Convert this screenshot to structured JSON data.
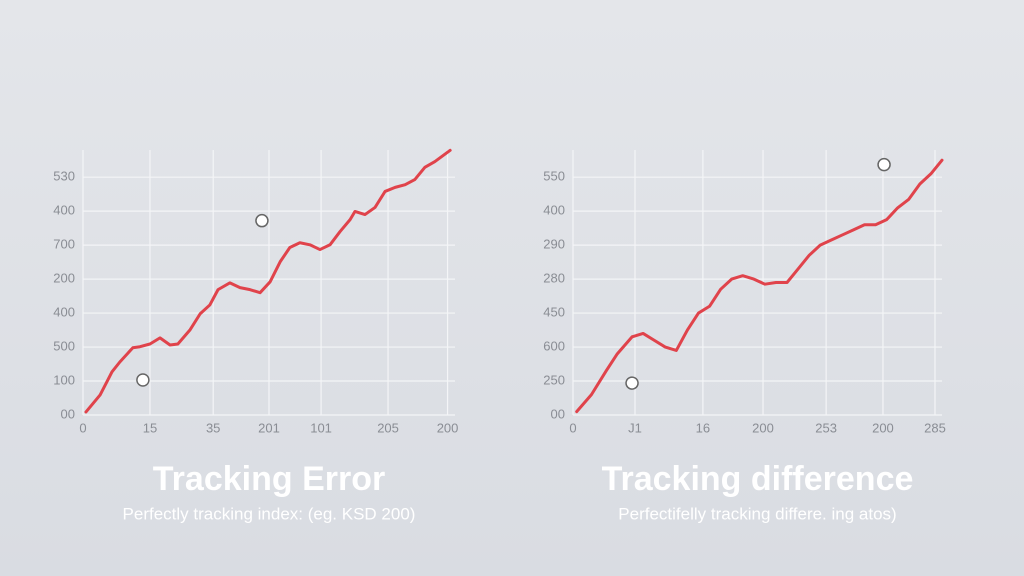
{
  "chart_data": [
    {
      "type": "line",
      "title": "Tracking Error",
      "subtitle": "Perfectly tracking index: (eg. KSD 200)",
      "xlim": [
        0,
        100
      ],
      "ylim": [
        0,
        7.8
      ],
      "grid": true,
      "xticks": [
        {
          "value": 0,
          "label": "0"
        },
        {
          "value": 18,
          "label": "15"
        },
        {
          "value": 35,
          "label": "35"
        },
        {
          "value": 50,
          "label": "201"
        },
        {
          "value": 64,
          "label": "101"
        },
        {
          "value": 82,
          "label": "205"
        },
        {
          "value": 98,
          "label": "200"
        }
      ],
      "yticks": [
        {
          "value": 0,
          "label": "00"
        },
        {
          "value": 1,
          "label": "100"
        },
        {
          "value": 2,
          "label": "500"
        },
        {
          "value": 3,
          "label": "400"
        },
        {
          "value": 4,
          "label": "200"
        },
        {
          "value": 5,
          "label": "700"
        },
        {
          "value": 6,
          "label": "400"
        },
        {
          "value": 7,
          "label": "530"
        }
      ],
      "series": [
        {
          "color": "#e0434b",
          "x": [
            0.8,
            4.6,
            7.8,
            9.9,
            13.4,
            15.3,
            18,
            20.7,
            23.4,
            25.5,
            28.8,
            31.5,
            34.1,
            36.3,
            39.5,
            42.2,
            44.9,
            47.6,
            50.3,
            53,
            55.6,
            58.3,
            61,
            63.7,
            66.4,
            69.1,
            71.8,
            73.1,
            75.8,
            78.5,
            81.2,
            83.9,
            86.6,
            89.2,
            91.9,
            94.6,
            98.7
          ],
          "values": [
            0.09,
            0.59,
            1.27,
            1.56,
            1.98,
            2.01,
            2.09,
            2.27,
            2.06,
            2.09,
            2.51,
            2.98,
            3.24,
            3.69,
            3.89,
            3.75,
            3.69,
            3.6,
            3.92,
            4.51,
            4.93,
            5.07,
            5.01,
            4.87,
            5.01,
            5.4,
            5.75,
            5.99,
            5.9,
            6.11,
            6.58,
            6.7,
            6.78,
            6.93,
            7.29,
            7.46,
            7.79
          ]
        }
      ],
      "markers": {
        "x": [
          16.1,
          48.1
        ],
        "y": [
          1.03,
          5.72
        ]
      }
    },
    {
      "type": "line",
      "title": "Tracking difference",
      "subtitle": "Perfectifelly tracking differe. ing atos)",
      "xlim": [
        0,
        100
      ],
      "ylim": [
        0,
        7.8
      ],
      "grid": true,
      "xticks": [
        {
          "value": 0,
          "label": "0"
        },
        {
          "value": 16.8,
          "label": "J1"
        },
        {
          "value": 35.2,
          "label": "16"
        },
        {
          "value": 51.5,
          "label": "200"
        },
        {
          "value": 68.6,
          "label": "253"
        },
        {
          "value": 84,
          "label": "200"
        },
        {
          "value": 98.1,
          "label": "285"
        }
      ],
      "yticks": [
        {
          "value": 0,
          "label": "00"
        },
        {
          "value": 1,
          "label": "250"
        },
        {
          "value": 2,
          "label": "600"
        },
        {
          "value": 3,
          "label": "450"
        },
        {
          "value": 4,
          "label": "280"
        },
        {
          "value": 5,
          "label": "290"
        },
        {
          "value": 6,
          "label": "400"
        },
        {
          "value": 7,
          "label": "550"
        }
      ],
      "series": [
        {
          "color": "#e0434b",
          "x": [
            1,
            5,
            9,
            12,
            16,
            19,
            22,
            25,
            28,
            31,
            34,
            37,
            40,
            43,
            46,
            49,
            52,
            55,
            58,
            61,
            64,
            67,
            70,
            73,
            76,
            79,
            82,
            85,
            88,
            91,
            94,
            97,
            100
          ],
          "values": [
            0.1,
            0.6,
            1.3,
            1.8,
            2.3,
            2.4,
            2.2,
            2.0,
            1.9,
            2.5,
            3.0,
            3.2,
            3.7,
            4.0,
            4.1,
            4.0,
            3.85,
            3.9,
            3.9,
            4.3,
            4.7,
            5.0,
            5.15,
            5.3,
            5.45,
            5.6,
            5.6,
            5.75,
            6.1,
            6.35,
            6.8,
            7.1,
            7.5
          ]
        }
      ],
      "markers": {
        "x": [
          16,
          84.3
        ],
        "y": [
          0.94,
          7.37
        ]
      }
    }
  ]
}
